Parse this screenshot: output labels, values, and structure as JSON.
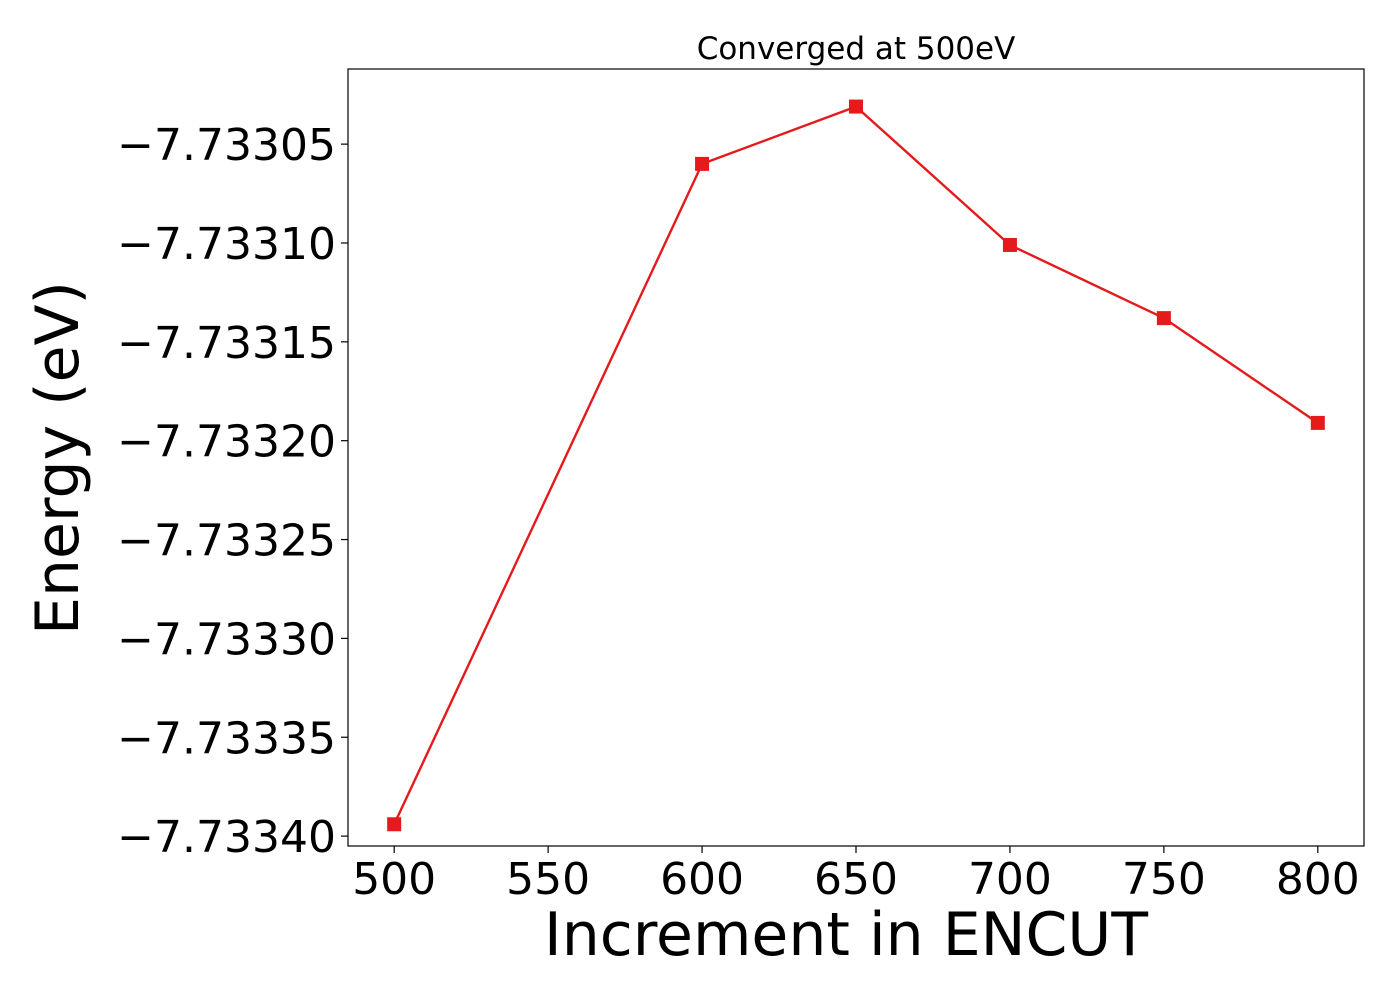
{
  "chart_data": {
    "type": "line",
    "title": "Converged at 500eV",
    "xlabel": "Increment in ENCUT",
    "ylabel": "Energy (eV)",
    "x": [
      500,
      600,
      650,
      700,
      750,
      800
    ],
    "series": [
      {
        "values": [
          -7.733394,
          -7.73306,
          -7.733031,
          -7.733101,
          -7.733138,
          -7.733191
        ],
        "color": "#e41a1c",
        "marker": "square"
      }
    ],
    "xticks": [
      500,
      550,
      600,
      650,
      700,
      750,
      800
    ],
    "xtick_labels": [
      "500",
      "550",
      "600",
      "650",
      "700",
      "750",
      "800"
    ],
    "yticks": [
      -7.73305,
      -7.7331,
      -7.73315,
      -7.7332,
      -7.73325,
      -7.7333,
      -7.73335,
      -7.7334
    ],
    "ytick_labels": [
      "−7.73305",
      "−7.73310",
      "−7.73315",
      "−7.73320",
      "−7.73325",
      "−7.73330",
      "−7.73335",
      "−7.73340"
    ],
    "xlim": [
      485,
      815
    ],
    "ylim": [
      -7.733405,
      -7.733012
    ],
    "grid": false,
    "legend": "none"
  }
}
